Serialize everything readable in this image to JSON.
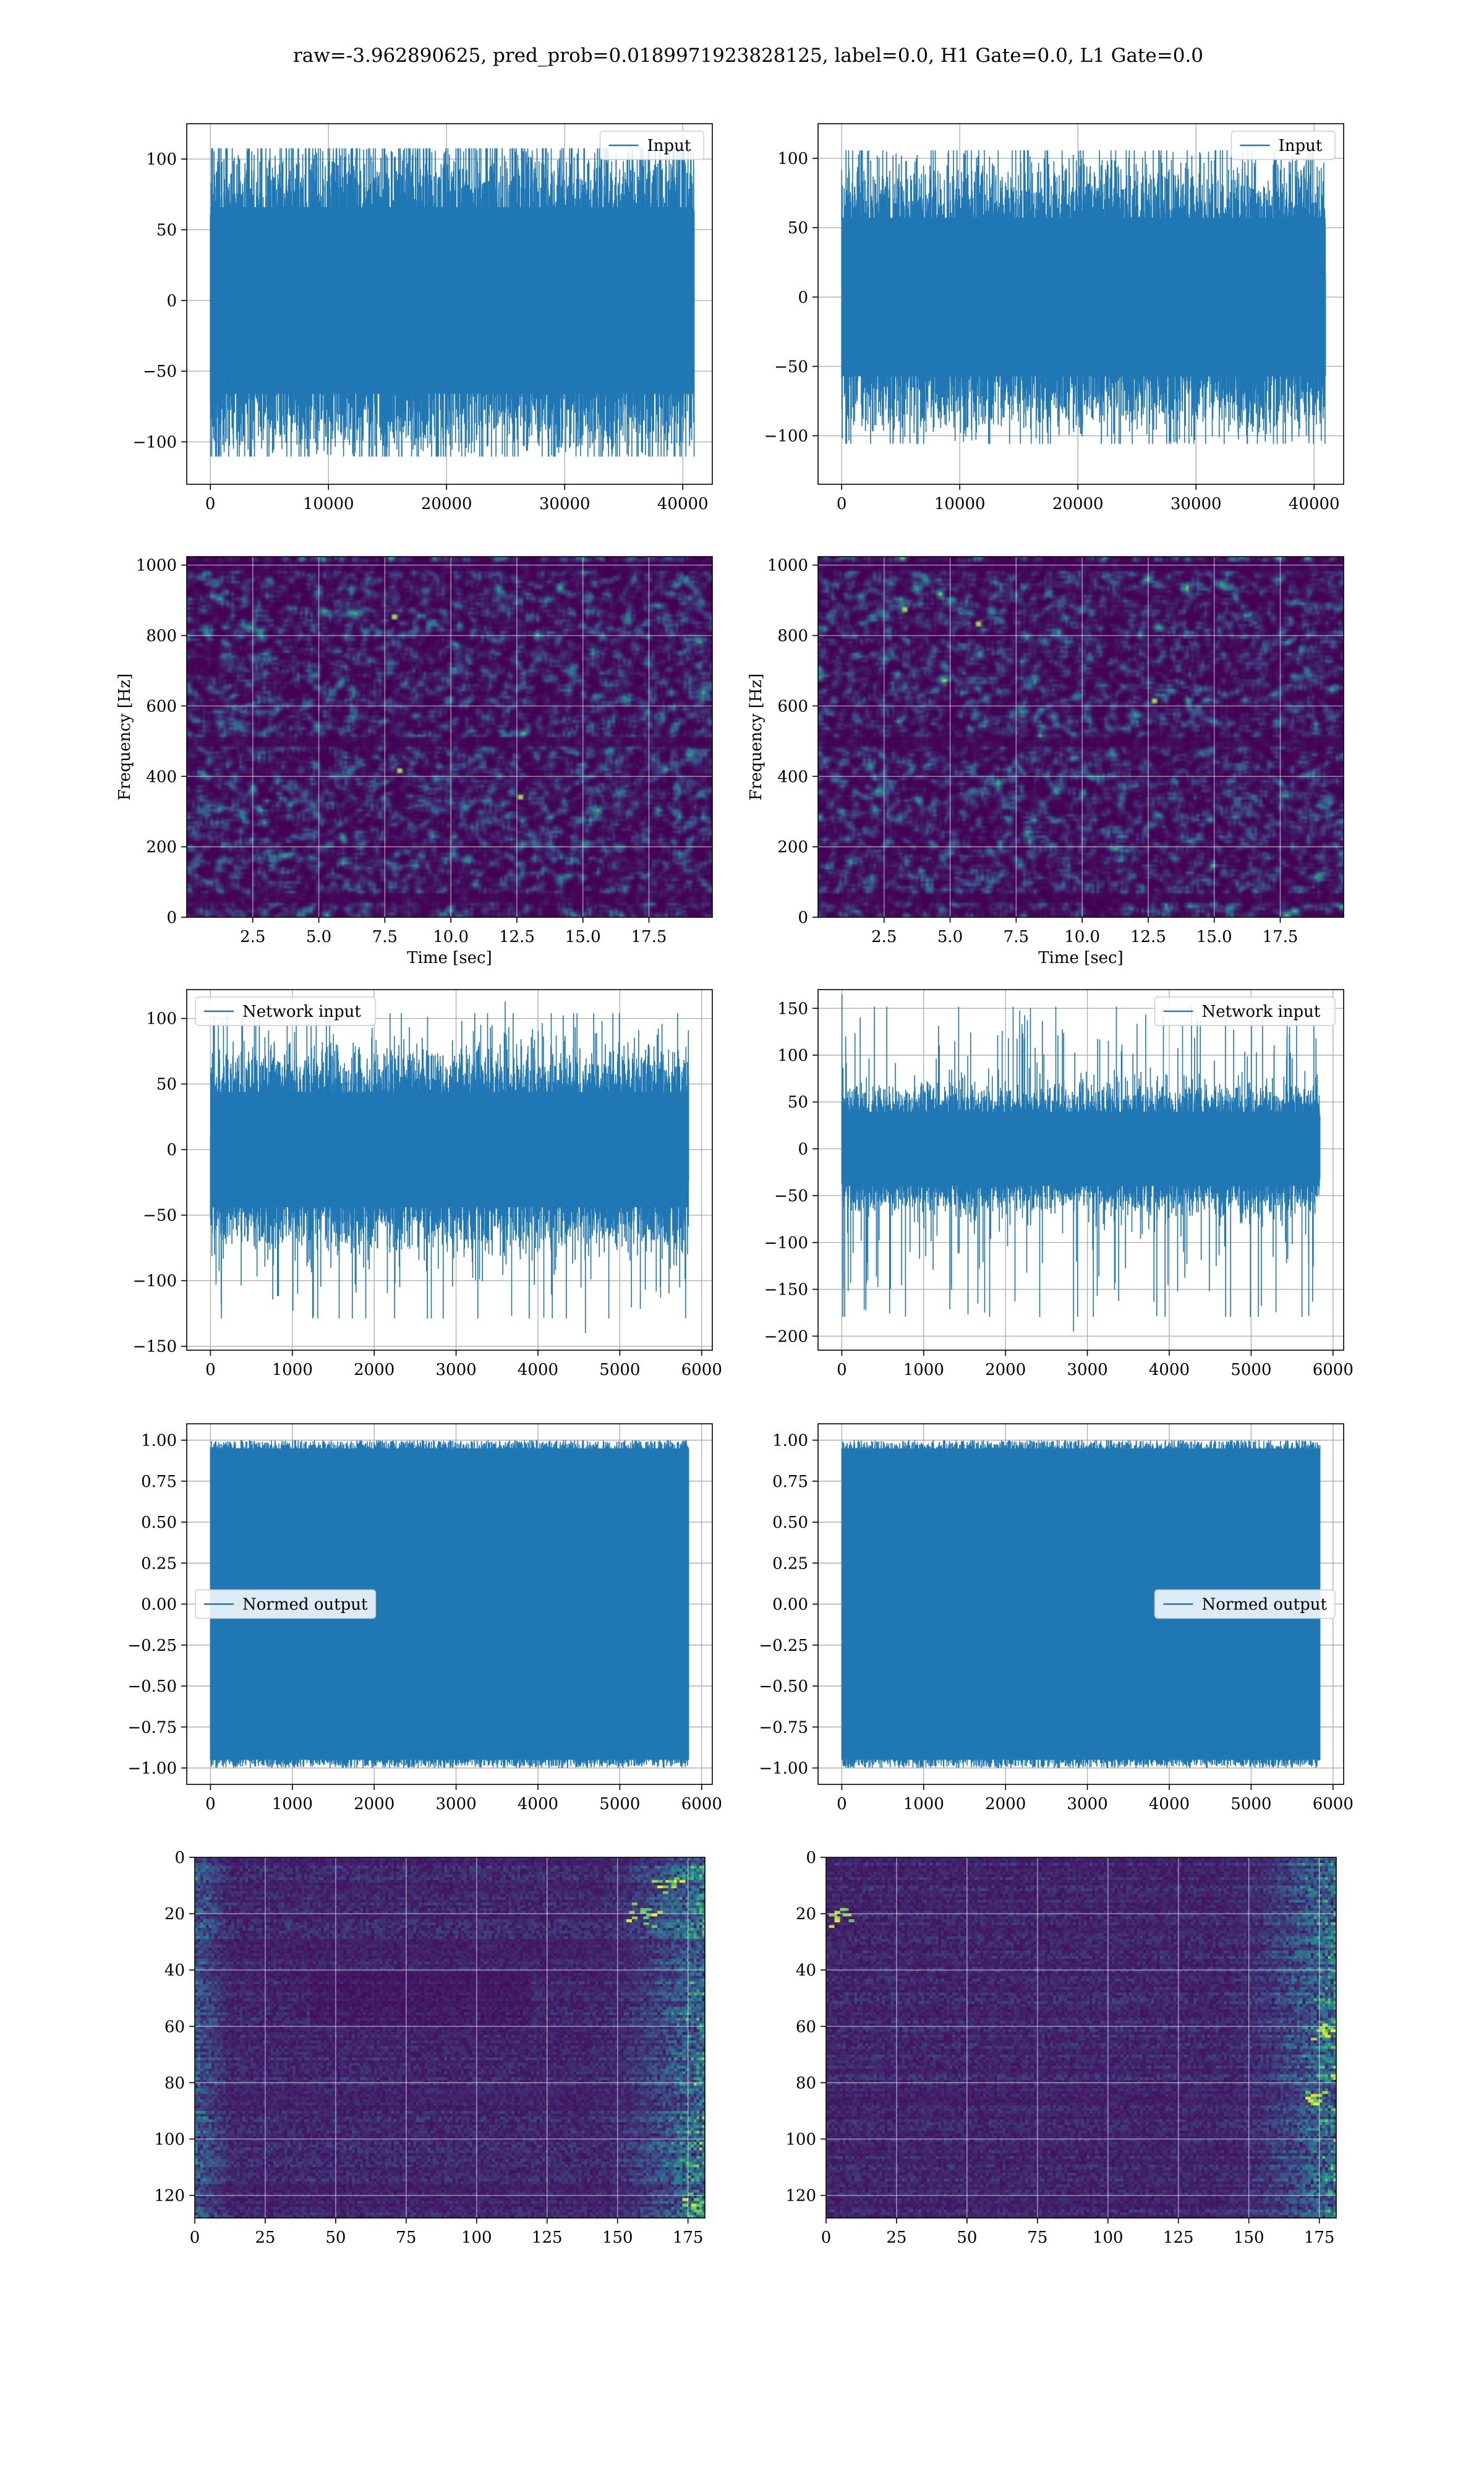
{
  "figure": {
    "suptitle": "raw=-3.962890625, pred_prob=0.0189971923828125, label=0.0, H1 Gate=0.0, L1 Gate=0.0"
  },
  "colors": {
    "series_line": "#1f77b4",
    "grid": "#b0b0b0",
    "viridis_dark": "#440154",
    "viridis_mid": "#3b528b",
    "viridis_teal": "#21918c",
    "viridis_green": "#5ec962",
    "viridis_yellow": "#fde725"
  },
  "chart_data": [
    {
      "id": "h1-input",
      "type": "line",
      "legend": [
        "Input"
      ],
      "legend_position": "top-right",
      "grid": true,
      "xlim": [
        -2000,
        42500
      ],
      "ylim": [
        -130,
        125
      ],
      "xticks": [
        0,
        10000,
        20000,
        30000,
        40000
      ],
      "yticks": [
        -100,
        -50,
        0,
        50,
        100
      ],
      "series": [
        {
          "name": "Input",
          "x_range": [
            0,
            40960
          ],
          "envelope": [
            -120,
            117
          ],
          "band": [
            -75,
            75
          ],
          "n_points": 40960
        }
      ]
    },
    {
      "id": "l1-input",
      "type": "line",
      "legend": [
        "Input"
      ],
      "legend_position": "top-right",
      "grid": true,
      "xlim": [
        -2000,
        42500
      ],
      "ylim": [
        -135,
        125
      ],
      "xticks": [
        0,
        10000,
        20000,
        30000,
        40000
      ],
      "yticks": [
        -100,
        -50,
        0,
        50,
        100
      ],
      "series": [
        {
          "name": "Input",
          "x_range": [
            0,
            40960
          ],
          "envelope": [
            -115,
            115
          ],
          "band": [
            -65,
            65
          ],
          "n_points": 40960
        }
      ]
    },
    {
      "id": "h1-spectrogram",
      "type": "heatmap",
      "colormap": "viridis",
      "xlabel": "Time [sec]",
      "ylabel": "Frequency [Hz]",
      "xlim": [
        0,
        19.9
      ],
      "ylim": [
        0,
        1024
      ],
      "xticks": [
        2.5,
        5.0,
        7.5,
        10.0,
        12.5,
        15.0,
        17.5
      ],
      "yticks": [
        0,
        200,
        400,
        600,
        800,
        1000
      ],
      "grid": true,
      "value_range": [
        0,
        1
      ],
      "dark_bands_hz": [
        60,
        500,
        1000
      ],
      "bright_spots": [
        {
          "t": 8.0,
          "f": 420
        },
        {
          "t": 7.8,
          "f": 860
        },
        {
          "t": 12.5,
          "f": 350
        }
      ]
    },
    {
      "id": "l1-spectrogram",
      "type": "heatmap",
      "colormap": "viridis",
      "xlabel": "Time [sec]",
      "ylabel": "Frequency [Hz]",
      "xlim": [
        0,
        19.9
      ],
      "ylim": [
        0,
        1024
      ],
      "xticks": [
        2.5,
        5.0,
        7.5,
        10.0,
        12.5,
        15.0,
        17.5
      ],
      "yticks": [
        0,
        200,
        400,
        600,
        800,
        1000
      ],
      "grid": true,
      "value_range": [
        0,
        1
      ],
      "dark_bands_hz": [
        60,
        500,
        1000
      ],
      "bright_spots": [
        {
          "t": 12.6,
          "f": 620
        },
        {
          "t": 6.0,
          "f": 840
        },
        {
          "t": 3.2,
          "f": 880
        }
      ]
    },
    {
      "id": "h1-network-input",
      "type": "line",
      "legend": [
        "Network input"
      ],
      "legend_position": "top-left",
      "grid": true,
      "xlim": [
        -290,
        6130
      ],
      "ylim": [
        -153,
        122
      ],
      "xticks": [
        0,
        1000,
        2000,
        3000,
        4000,
        5000,
        6000
      ],
      "yticks": [
        -150,
        -100,
        -50,
        0,
        50,
        100
      ],
      "series": [
        {
          "name": "Network input",
          "x_range": [
            0,
            5840
          ],
          "envelope": [
            -140,
            113
          ],
          "band": [
            -50,
            50
          ],
          "n_points": 5840,
          "notable": [
            {
              "x": 4580,
              "y": -140
            },
            {
              "x": 3600,
              "y": 113
            }
          ]
        }
      ]
    },
    {
      "id": "l1-network-input",
      "type": "line",
      "legend": [
        "Network input"
      ],
      "legend_position": "top-right",
      "grid": true,
      "xlim": [
        -290,
        6130
      ],
      "ylim": [
        -215,
        170
      ],
      "xticks": [
        0,
        1000,
        2000,
        3000,
        4000,
        5000,
        6000
      ],
      "yticks": [
        -200,
        -150,
        -100,
        -50,
        0,
        50,
        100,
        150
      ],
      "series": [
        {
          "name": "Network input",
          "x_range": [
            0,
            5840
          ],
          "envelope": [
            -195,
            165
          ],
          "band": [
            -45,
            45
          ],
          "n_points": 5840,
          "notable": [
            {
              "x": 2,
              "y": 165
            },
            {
              "x": 2830,
              "y": -195
            }
          ]
        }
      ]
    },
    {
      "id": "h1-normed-output",
      "type": "line",
      "legend": [
        "Normed output"
      ],
      "legend_position": "center-left",
      "grid": true,
      "xlim": [
        -290,
        6130
      ],
      "ylim": [
        -1.1,
        1.1
      ],
      "xticks": [
        0,
        1000,
        2000,
        3000,
        4000,
        5000,
        6000
      ],
      "yticks": [
        -1.0,
        -0.75,
        -0.5,
        -0.25,
        0.0,
        0.25,
        0.5,
        0.75,
        1.0
      ],
      "series": [
        {
          "name": "Normed output",
          "x_range": [
            0,
            5840
          ],
          "envelope": [
            -1.0,
            1.0
          ],
          "band": [
            -0.95,
            0.95
          ],
          "n_points": 5840
        }
      ]
    },
    {
      "id": "l1-normed-output",
      "type": "line",
      "legend": [
        "Normed output"
      ],
      "legend_position": "center-right",
      "grid": true,
      "xlim": [
        -290,
        6130
      ],
      "ylim": [
        -1.1,
        1.1
      ],
      "xticks": [
        0,
        1000,
        2000,
        3000,
        4000,
        5000,
        6000
      ],
      "yticks": [
        -1.0,
        -0.75,
        -0.5,
        -0.25,
        0.0,
        0.25,
        0.5,
        0.75,
        1.0
      ],
      "series": [
        {
          "name": "Normed output",
          "x_range": [
            0,
            5840
          ],
          "envelope": [
            -1.0,
            1.0
          ],
          "band": [
            -0.95,
            0.95
          ],
          "n_points": 5840
        }
      ]
    },
    {
      "id": "h1-feature-map",
      "type": "heatmap",
      "colormap": "viridis",
      "xlim": [
        0,
        181
      ],
      "ylim": [
        128,
        0
      ],
      "xticks": [
        0,
        25,
        50,
        75,
        100,
        125,
        150,
        175
      ],
      "yticks": [
        0,
        20,
        40,
        60,
        80,
        100,
        120
      ],
      "grid": true,
      "n_rows": 128,
      "n_cols": 182,
      "bright_regions": [
        {
          "col": 170,
          "row": 9
        },
        {
          "col": 178,
          "row": 123
        },
        {
          "col": 160,
          "row": 20
        }
      ]
    },
    {
      "id": "l1-feature-map",
      "type": "heatmap",
      "colormap": "viridis",
      "xlim": [
        0,
        181
      ],
      "ylim": [
        128,
        0
      ],
      "xticks": [
        0,
        25,
        50,
        75,
        100,
        125,
        150,
        175
      ],
      "yticks": [
        0,
        20,
        40,
        60,
        80,
        100,
        120
      ],
      "grid": true,
      "n_rows": 128,
      "n_cols": 182,
      "bright_regions": [
        {
          "col": 175,
          "row": 85
        },
        {
          "col": 178,
          "row": 62
        },
        {
          "col": 4,
          "row": 20
        }
      ]
    }
  ]
}
